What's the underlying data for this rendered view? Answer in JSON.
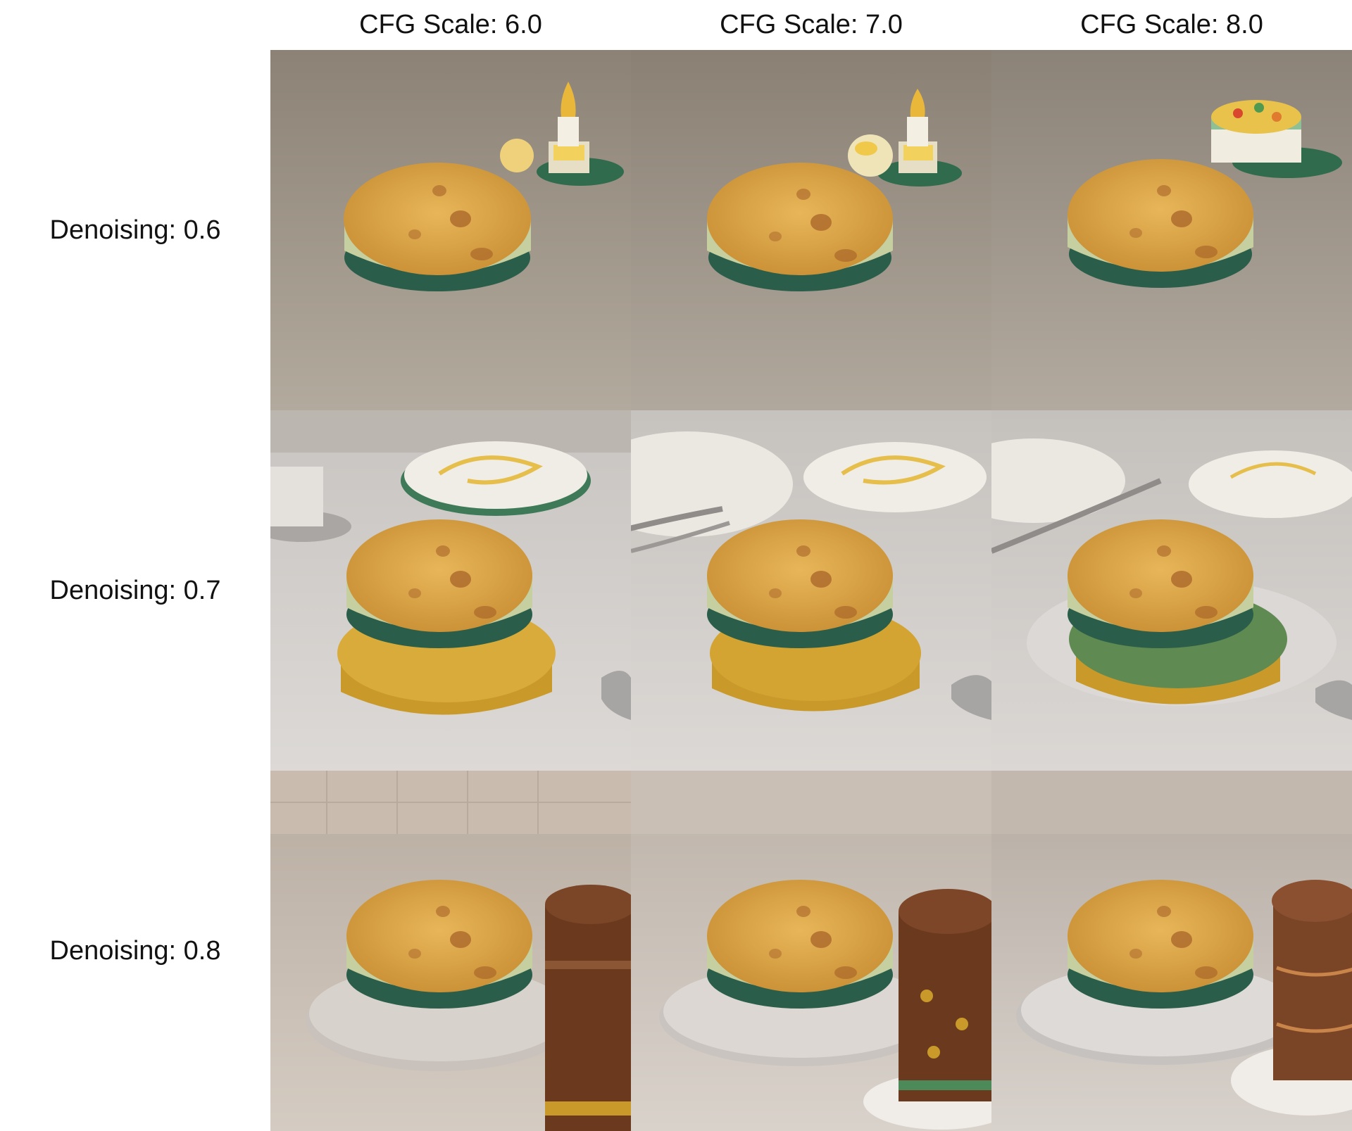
{
  "columns": [
    {
      "label": "CFG Scale: 6.0"
    },
    {
      "label": "CFG Scale: 7.0"
    },
    {
      "label": "CFG Scale: 8.0"
    }
  ],
  "rows": [
    {
      "label": "Denoising: 0.6"
    },
    {
      "label": "Denoising: 0.7"
    },
    {
      "label": "Denoising: 0.8"
    }
  ],
  "palette": {
    "crust": "#d9a441",
    "crust_dark": "#a8642a",
    "cake_side": "#c9cf9a",
    "gold_board": "#c99a2a",
    "chocolate": "#6b3a1e",
    "countertop_warm": "#9a8f84",
    "countertop_light": "#d6d2ce",
    "silver_board": "#c8c4c0"
  }
}
